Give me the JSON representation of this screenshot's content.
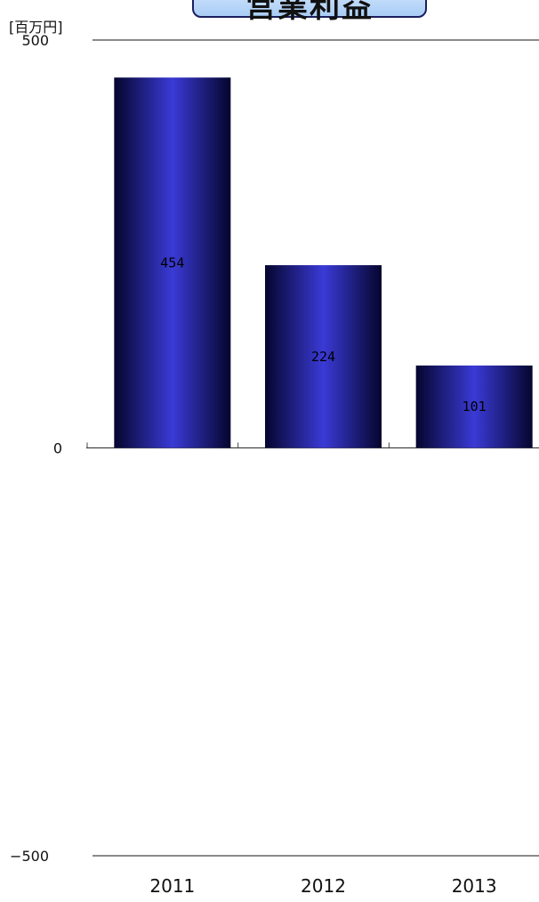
{
  "chart_data": {
    "type": "bar",
    "title": "営業利益",
    "unit_label": "[百万円]",
    "categories": [
      "2011",
      "2012",
      "2013"
    ],
    "values": [
      454,
      224,
      101
    ],
    "ylim": [
      -500,
      500
    ],
    "y_ticks": [
      500,
      0,
      -500
    ],
    "y_tick_labels": [
      "500",
      "0",
      "−500"
    ],
    "data_labels": [
      "454",
      "224",
      "101"
    ],
    "grid": false,
    "legend": "none",
    "bar_colors": {
      "center": "#3a3ad6",
      "edge": "#05052e"
    },
    "title_box_colors": {
      "top": "#dcebff",
      "bottom": "#a9cdf5",
      "border": "#1a1f5e"
    }
  }
}
